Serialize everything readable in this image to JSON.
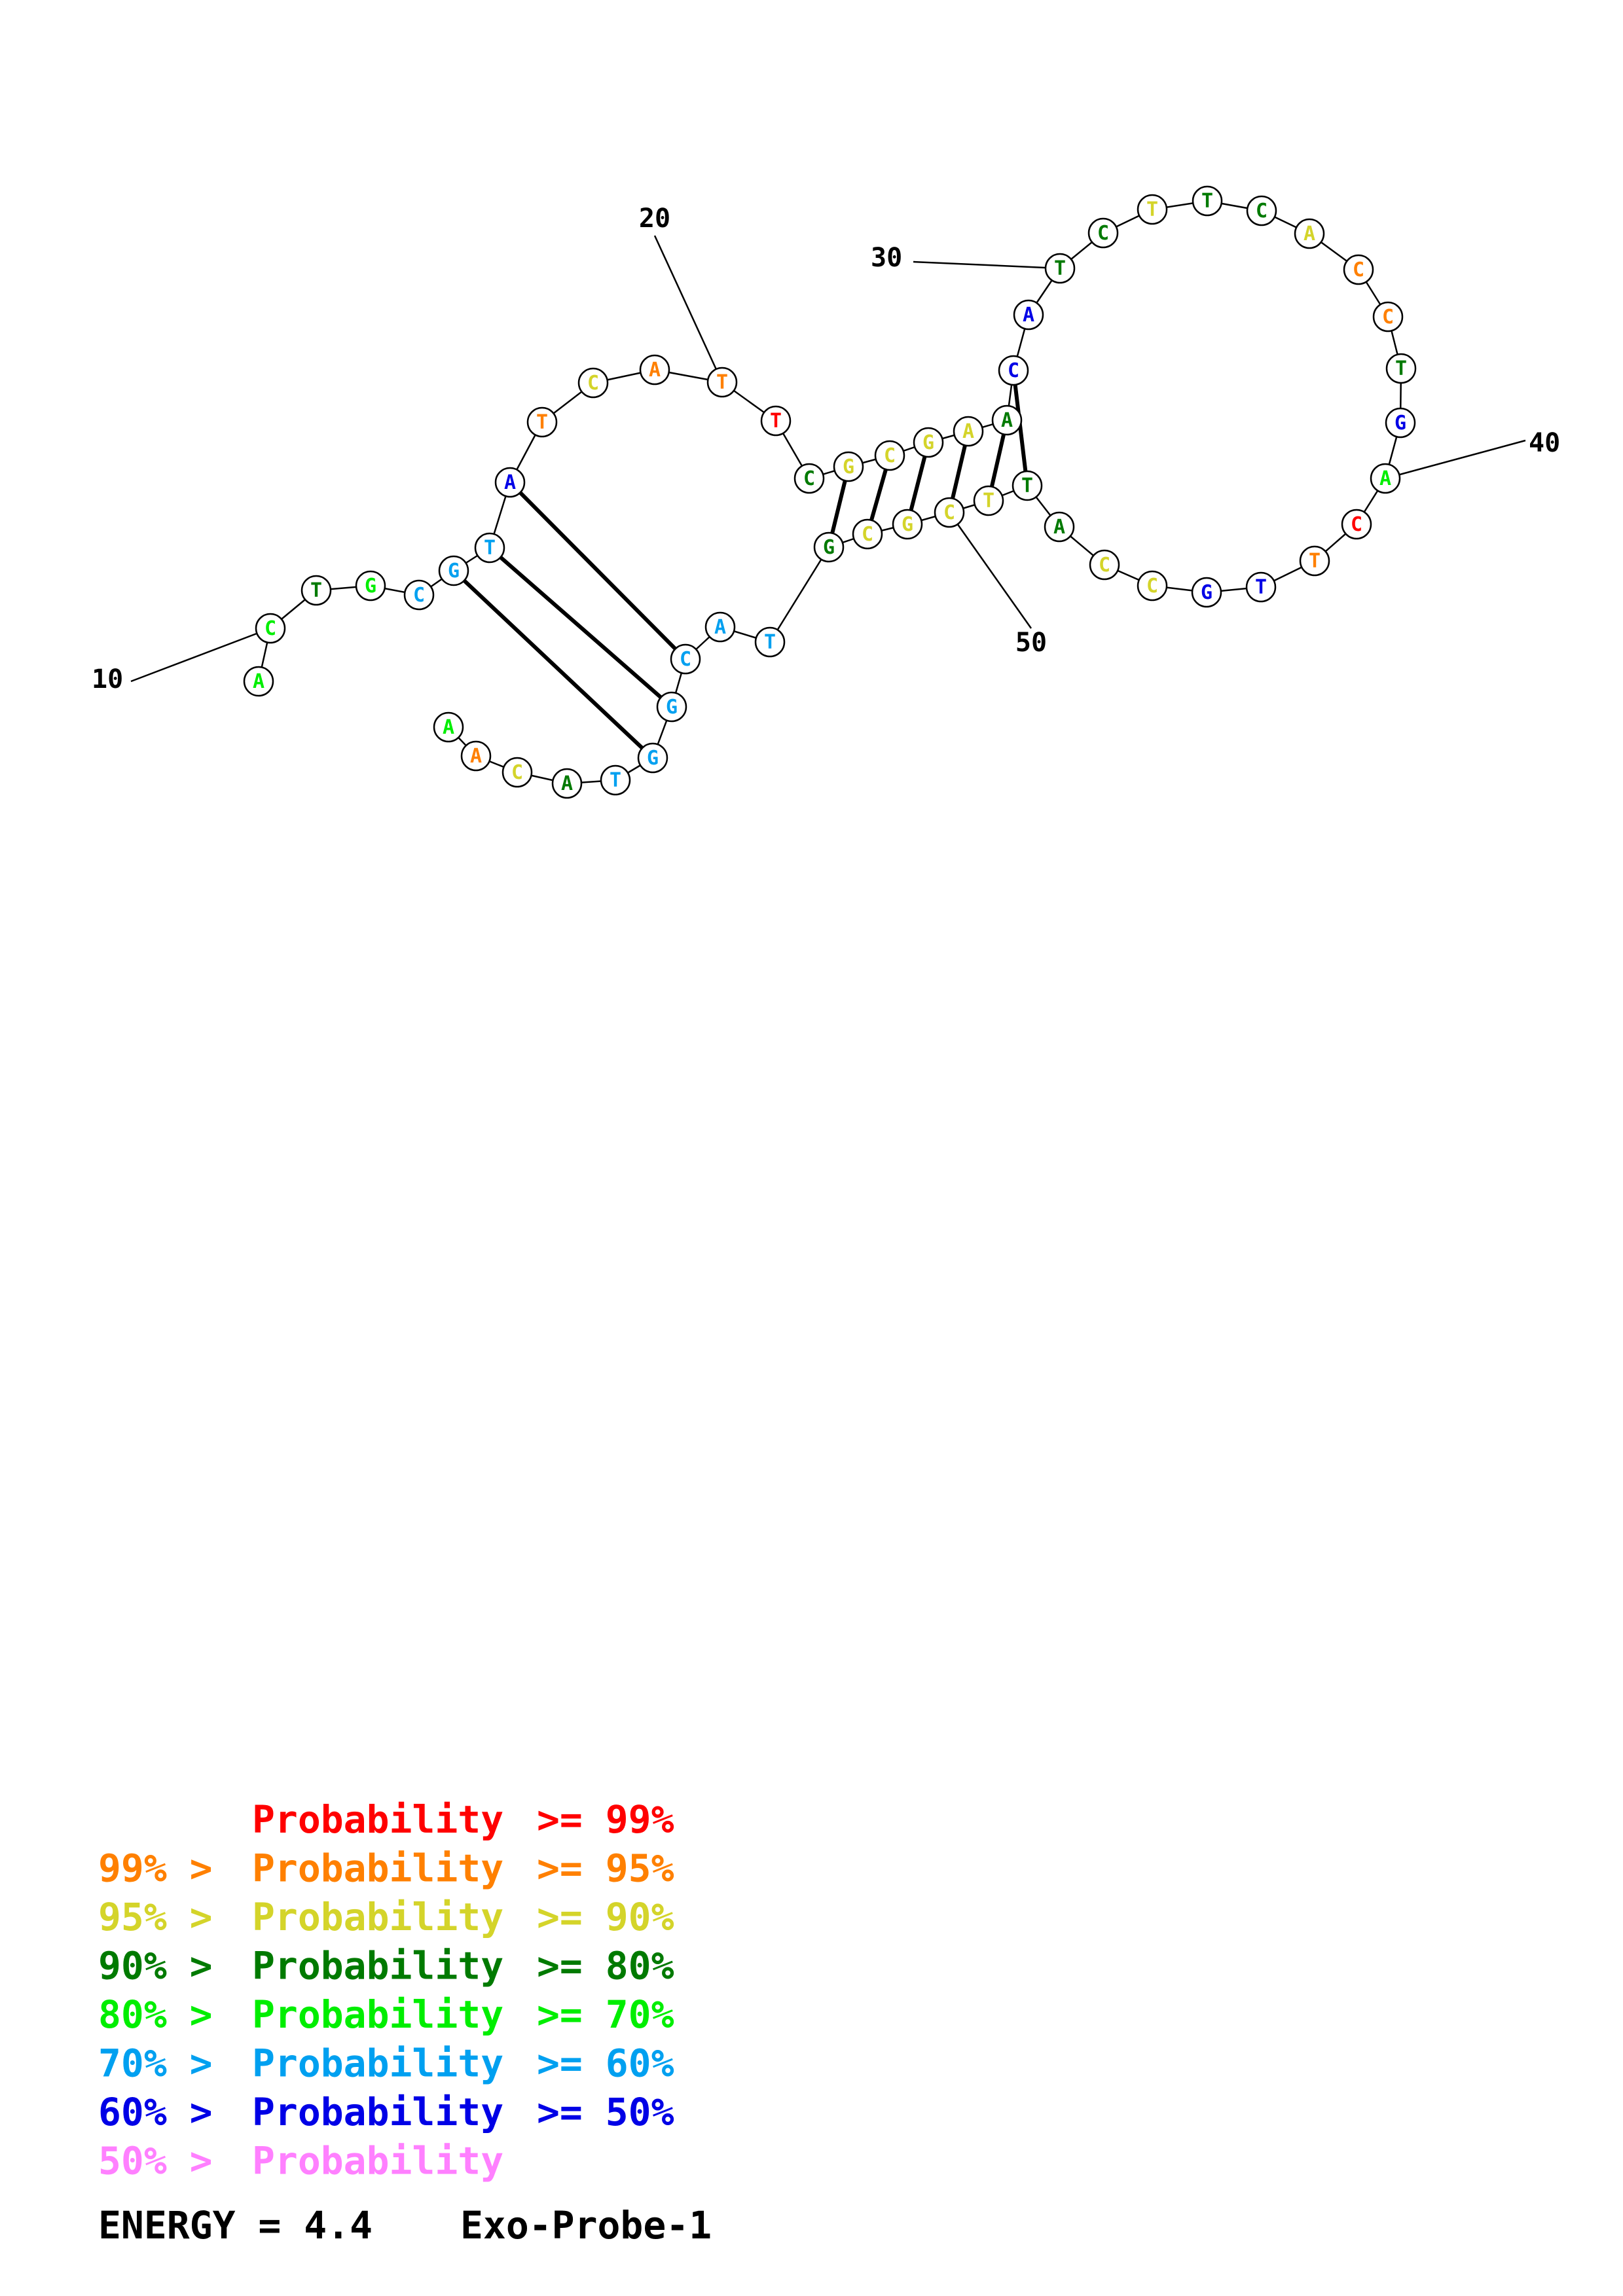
{
  "colors": {
    "p99": "#ff0000",
    "p95": "#ff8000",
    "p90": "#d4d42a",
    "p80": "#007a00",
    "p70": "#00ee00",
    "p60": "#00a0f0",
    "p50": "#0000e6",
    "plow": "#ff80ff"
  },
  "sequence": [
    {
      "base": "A",
      "tier": "p70"
    },
    {
      "base": "C",
      "tier": "p70"
    },
    {
      "base": "T",
      "tier": "p80"
    },
    {
      "base": "G",
      "tier": "p70"
    },
    {
      "base": "C",
      "tier": "p60"
    },
    {
      "base": "G",
      "tier": "p60"
    },
    {
      "base": "T",
      "tier": "p60"
    },
    {
      "base": "A",
      "tier": "p50"
    },
    {
      "base": "T",
      "tier": "p95"
    },
    {
      "base": "C",
      "tier": "p90"
    },
    {
      "base": "A",
      "tier": "p95"
    },
    {
      "base": "T",
      "tier": "p95"
    },
    {
      "base": "T",
      "tier": "p99"
    },
    {
      "base": "C",
      "tier": "p80"
    },
    {
      "base": "G",
      "tier": "p90"
    },
    {
      "base": "C",
      "tier": "p90"
    },
    {
      "base": "G",
      "tier": "p90"
    },
    {
      "base": "A",
      "tier": "p90"
    },
    {
      "base": "A",
      "tier": "p80"
    },
    {
      "base": "C",
      "tier": "p50"
    },
    {
      "base": "A",
      "tier": "p50"
    },
    {
      "base": "T",
      "tier": "p80"
    },
    {
      "base": "C",
      "tier": "p80"
    },
    {
      "base": "T",
      "tier": "p90"
    },
    {
      "base": "T",
      "tier": "p80"
    },
    {
      "base": "C",
      "tier": "p80"
    },
    {
      "base": "A",
      "tier": "p90"
    },
    {
      "base": "C",
      "tier": "p95"
    },
    {
      "base": "C",
      "tier": "p95"
    },
    {
      "base": "T",
      "tier": "p80"
    },
    {
      "base": "G",
      "tier": "p50"
    },
    {
      "base": "A",
      "tier": "p70"
    },
    {
      "base": "C",
      "tier": "p99"
    },
    {
      "base": "T",
      "tier": "p95"
    },
    {
      "base": "T",
      "tier": "p50"
    },
    {
      "base": "G",
      "tier": "p50"
    },
    {
      "base": "C",
      "tier": "p90"
    },
    {
      "base": "C",
      "tier": "p90"
    },
    {
      "base": "A",
      "tier": "p80"
    },
    {
      "base": "T",
      "tier": "p80"
    },
    {
      "base": "T",
      "tier": "p90"
    },
    {
      "base": "C",
      "tier": "p90"
    },
    {
      "base": "G",
      "tier": "p90"
    },
    {
      "base": "C",
      "tier": "p90"
    },
    {
      "base": "G",
      "tier": "p80"
    },
    {
      "base": "T",
      "tier": "p60"
    },
    {
      "base": "A",
      "tier": "p60"
    },
    {
      "base": "C",
      "tier": "p60"
    },
    {
      "base": "G",
      "tier": "p60"
    },
    {
      "base": "G",
      "tier": "p60"
    },
    {
      "base": "T",
      "tier": "p60"
    },
    {
      "base": "A",
      "tier": "p80"
    },
    {
      "base": "C",
      "tier": "p90"
    },
    {
      "base": "A",
      "tier": "p95"
    },
    {
      "base": "A",
      "tier": "p70"
    }
  ],
  "pairs": [
    [
      5,
      49
    ],
    [
      6,
      48
    ],
    [
      7,
      47
    ],
    [
      14,
      44
    ],
    [
      15,
      43
    ],
    [
      16,
      42
    ],
    [
      17,
      41
    ],
    [
      18,
      40
    ],
    [
      19,
      39
    ]
  ],
  "position_labels": [
    {
      "index": 1,
      "text": "10"
    },
    {
      "index": 11,
      "text": "20"
    },
    {
      "index": 21,
      "text": "30"
    },
    {
      "index": 31,
      "text": "40"
    },
    {
      "index": 41,
      "text": "50"
    }
  ],
  "legend": [
    {
      "prefix": "",
      "label": "Probability",
      "suffix": ">= 99%",
      "tier": "p99"
    },
    {
      "prefix": "99% >",
      "label": "Probability",
      "suffix": ">= 95%",
      "tier": "p95"
    },
    {
      "prefix": "95% >",
      "label": "Probability",
      "suffix": ">= 90%",
      "tier": "p90"
    },
    {
      "prefix": "90% >",
      "label": "Probability",
      "suffix": ">= 80%",
      "tier": "p80"
    },
    {
      "prefix": "80% >",
      "label": "Probability",
      "suffix": ">= 70%",
      "tier": "p70"
    },
    {
      "prefix": "70% >",
      "label": "Probability",
      "suffix": ">= 60%",
      "tier": "p60"
    },
    {
      "prefix": "60% >",
      "label": "Probability",
      "suffix": ">= 50%",
      "tier": "p50"
    },
    {
      "prefix": "50% >",
      "label": "Probability",
      "suffix": "",
      "tier": "plow"
    }
  ],
  "footer": {
    "energy_label": "ENERGY = 4.4",
    "name": "Exo-Probe-1"
  }
}
